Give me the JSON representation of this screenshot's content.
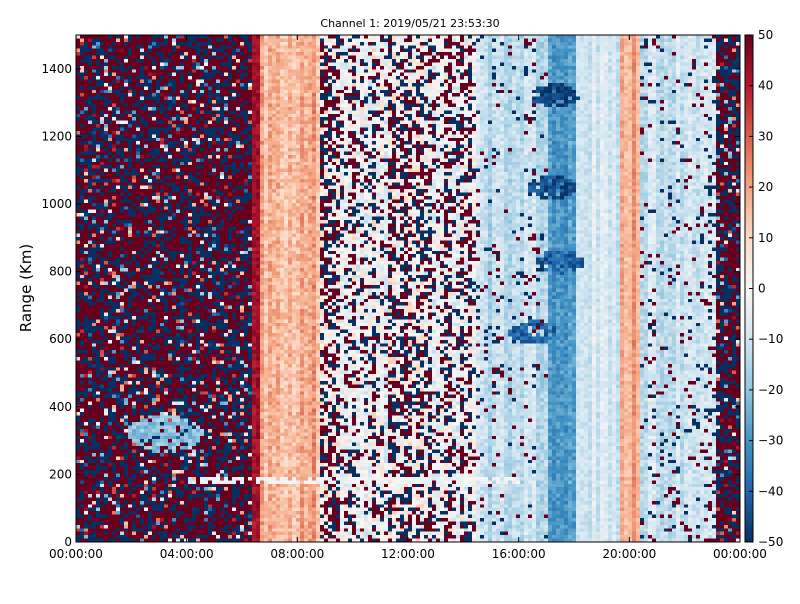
{
  "chart_data": {
    "type": "heatmap",
    "title": "Channel 1: 2019/05/21 23:53:30",
    "xlabel": "",
    "ylabel": "Range (Km)",
    "x_ticks": [
      "00:00:00",
      "04:00:00",
      "08:00:00",
      "12:00:00",
      "16:00:00",
      "20:00:00",
      "00:00:00"
    ],
    "x_tick_hours": [
      0,
      4,
      8,
      12,
      16,
      20,
      24
    ],
    "xlim_hours": [
      0,
      24
    ],
    "y_ticks": [
      0,
      200,
      400,
      600,
      800,
      1000,
      1200,
      1400
    ],
    "ylim": [
      0,
      1500
    ],
    "colorbar": {
      "min": -50,
      "max": 50,
      "ticks": [
        50,
        40,
        30,
        20,
        10,
        0,
        -10,
        -20,
        -30,
        -40,
        -50
      ],
      "colormap": "RdBu_r",
      "colors_low_to_high": [
        "#053061",
        "#2166ac",
        "#4393c3",
        "#92c5de",
        "#d1e5f0",
        "#f7f7f7",
        "#fddbc7",
        "#f4a582",
        "#d6604d",
        "#b2182b",
        "#67001f"
      ]
    },
    "regions": [
      {
        "label": "noise",
        "x_start_h": 0,
        "x_end_h": 6.4,
        "mean_value": 0,
        "spread": 60
      },
      {
        "label": "sharp edge",
        "x_start_h": 6.4,
        "x_end_h": 6.7,
        "mean_value": 45,
        "spread": 8
      },
      {
        "label": "warm band",
        "x_start_h": 6.7,
        "x_end_h": 8.8,
        "mean_value": 18,
        "spread": 12
      },
      {
        "label": "speckled",
        "x_start_h": 8.8,
        "x_end_h": 14.5,
        "mean_value": 0,
        "spread": 18,
        "speckle": 0.25
      },
      {
        "label": "light blue",
        "x_start_h": 14.5,
        "x_end_h": 17.0,
        "mean_value": -12,
        "spread": 10,
        "speckle": 0.05
      },
      {
        "label": "blue band",
        "x_start_h": 17.0,
        "x_end_h": 18.1,
        "mean_value": -28,
        "spread": 10
      },
      {
        "label": "pale",
        "x_start_h": 18.1,
        "x_end_h": 19.6,
        "mean_value": -8,
        "spread": 8
      },
      {
        "label": "orange band",
        "x_start_h": 19.6,
        "x_end_h": 20.4,
        "mean_value": 20,
        "spread": 8
      },
      {
        "label": "pale blue",
        "x_start_h": 20.4,
        "x_end_h": 23.1,
        "mean_value": -10,
        "spread": 10,
        "speckle": 0.08
      },
      {
        "label": "end noise",
        "x_start_h": 23.1,
        "x_end_h": 24,
        "mean_value": 0,
        "spread": 60
      }
    ],
    "features": [
      {
        "label": "white blob",
        "x_h": 3.2,
        "y_km": 320,
        "value": -20
      },
      {
        "label": "blue arc",
        "x_h": 16.5,
        "y_km": 620,
        "value": -40
      },
      {
        "label": "blue arc",
        "x_h": 17.5,
        "y_km": 830,
        "value": -42
      },
      {
        "label": "blue arc",
        "x_h": 17.2,
        "y_km": 1050,
        "value": -45
      },
      {
        "label": "blue arc",
        "x_h": 17.3,
        "y_km": 1320,
        "value": -48
      },
      {
        "label": "pale stripe",
        "y_km": 185,
        "x_start_h": 4.5,
        "x_end_h": 16,
        "value": -2
      }
    ]
  }
}
